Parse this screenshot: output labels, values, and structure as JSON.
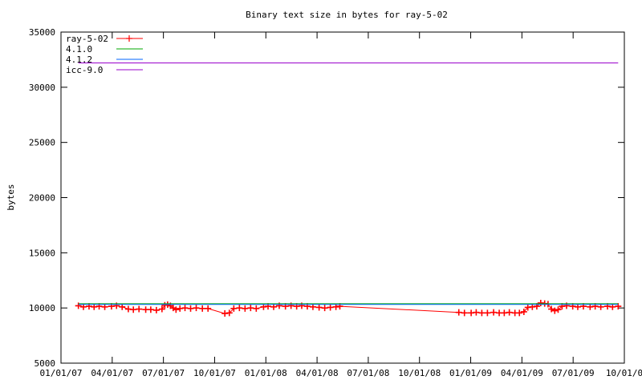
{
  "chart_data": {
    "type": "line",
    "title": "Binary text size in bytes for ray-5-02",
    "xlabel": "",
    "ylabel": "bytes",
    "ylim": [
      5000,
      35000
    ],
    "xlim": [
      "2007-01-01",
      "2009-10-01"
    ],
    "yticks": [
      5000,
      10000,
      15000,
      20000,
      25000,
      30000,
      35000
    ],
    "xticks": [
      "01/01/07",
      "04/01/07",
      "07/01/07",
      "10/01/07",
      "01/01/08",
      "04/01/08",
      "07/01/08",
      "10/01/08",
      "01/01/09",
      "04/01/09",
      "07/01/09",
      "10/01/0"
    ],
    "grid": false,
    "legend_position": "top-left",
    "series": [
      {
        "name": "ray-5-02",
        "color": "#ff0000",
        "style": "line-points",
        "points": [
          [
            "2007-02-01",
            10200
          ],
          [
            "2007-02-10",
            10100
          ],
          [
            "2007-02-20",
            10150
          ],
          [
            "2007-03-01",
            10100
          ],
          [
            "2007-03-10",
            10150
          ],
          [
            "2007-03-20",
            10100
          ],
          [
            "2007-04-01",
            10150
          ],
          [
            "2007-04-10",
            10200
          ],
          [
            "2007-04-20",
            10100
          ],
          [
            "2007-05-01",
            9900
          ],
          [
            "2007-05-10",
            9850
          ],
          [
            "2007-05-20",
            9900
          ],
          [
            "2007-06-01",
            9850
          ],
          [
            "2007-06-10",
            9850
          ],
          [
            "2007-06-20",
            9800
          ],
          [
            "2007-06-30",
            9900
          ],
          [
            "2007-07-05",
            10250
          ],
          [
            "2007-07-10",
            10300
          ],
          [
            "2007-07-15",
            10200
          ],
          [
            "2007-07-20",
            10000
          ],
          [
            "2007-07-25",
            9850
          ],
          [
            "2007-08-01",
            9950
          ],
          [
            "2007-08-10",
            10000
          ],
          [
            "2007-08-20",
            9950
          ],
          [
            "2007-08-30",
            10000
          ],
          [
            "2007-09-10",
            9950
          ],
          [
            "2007-09-20",
            9950
          ],
          [
            "2007-10-20",
            9500
          ],
          [
            "2007-10-28",
            9550
          ],
          [
            "2007-11-05",
            9950
          ],
          [
            "2007-11-15",
            10000
          ],
          [
            "2007-11-25",
            9950
          ],
          [
            "2007-12-05",
            10000
          ],
          [
            "2007-12-15",
            9950
          ],
          [
            "2007-12-28",
            10100
          ],
          [
            "2008-01-05",
            10150
          ],
          [
            "2008-01-15",
            10100
          ],
          [
            "2008-01-25",
            10200
          ],
          [
            "2008-02-05",
            10150
          ],
          [
            "2008-02-15",
            10200
          ],
          [
            "2008-02-25",
            10150
          ],
          [
            "2008-03-05",
            10200
          ],
          [
            "2008-03-15",
            10150
          ],
          [
            "2008-03-25",
            10100
          ],
          [
            "2008-04-05",
            10050
          ],
          [
            "2008-04-15",
            10000
          ],
          [
            "2008-04-25",
            10050
          ],
          [
            "2008-05-05",
            10100
          ],
          [
            "2008-05-12",
            10150
          ],
          [
            "2008-12-10",
            9600
          ],
          [
            "2008-12-20",
            9550
          ],
          [
            "2009-01-01",
            9550
          ],
          [
            "2009-01-10",
            9600
          ],
          [
            "2009-01-20",
            9550
          ],
          [
            "2009-01-30",
            9550
          ],
          [
            "2009-02-10",
            9600
          ],
          [
            "2009-02-20",
            9550
          ],
          [
            "2009-03-01",
            9550
          ],
          [
            "2009-03-10",
            9600
          ],
          [
            "2009-03-20",
            9550
          ],
          [
            "2009-03-28",
            9550
          ],
          [
            "2009-04-05",
            9650
          ],
          [
            "2009-04-12",
            10050
          ],
          [
            "2009-04-20",
            10100
          ],
          [
            "2009-04-28",
            10150
          ],
          [
            "2009-05-05",
            10450
          ],
          [
            "2009-05-12",
            10400
          ],
          [
            "2009-05-18",
            10350
          ],
          [
            "2009-05-24",
            9900
          ],
          [
            "2009-05-30",
            9750
          ],
          [
            "2009-06-05",
            9850
          ],
          [
            "2009-06-12",
            10150
          ],
          [
            "2009-06-20",
            10200
          ],
          [
            "2009-07-01",
            10150
          ],
          [
            "2009-07-10",
            10100
          ],
          [
            "2009-07-20",
            10150
          ],
          [
            "2009-08-01",
            10100
          ],
          [
            "2009-08-10",
            10150
          ],
          [
            "2009-08-20",
            10100
          ],
          [
            "2009-09-01",
            10150
          ],
          [
            "2009-09-10",
            10100
          ],
          [
            "2009-09-20",
            10150
          ]
        ]
      },
      {
        "name": "4.1.0",
        "color": "#00aa00",
        "style": "line",
        "points": [
          [
            "2007-02-01",
            10380
          ],
          [
            "2009-09-20",
            10380
          ]
        ]
      },
      {
        "name": "4.1.2",
        "color": "#0066ff",
        "style": "line",
        "points": [
          [
            "2007-02-01",
            10320
          ],
          [
            "2009-09-20",
            10320
          ]
        ]
      },
      {
        "name": "icc-9.0",
        "color": "#9900cc",
        "style": "line",
        "points": [
          [
            "2007-02-01",
            32200
          ],
          [
            "2009-09-20",
            32200
          ]
        ]
      }
    ]
  }
}
